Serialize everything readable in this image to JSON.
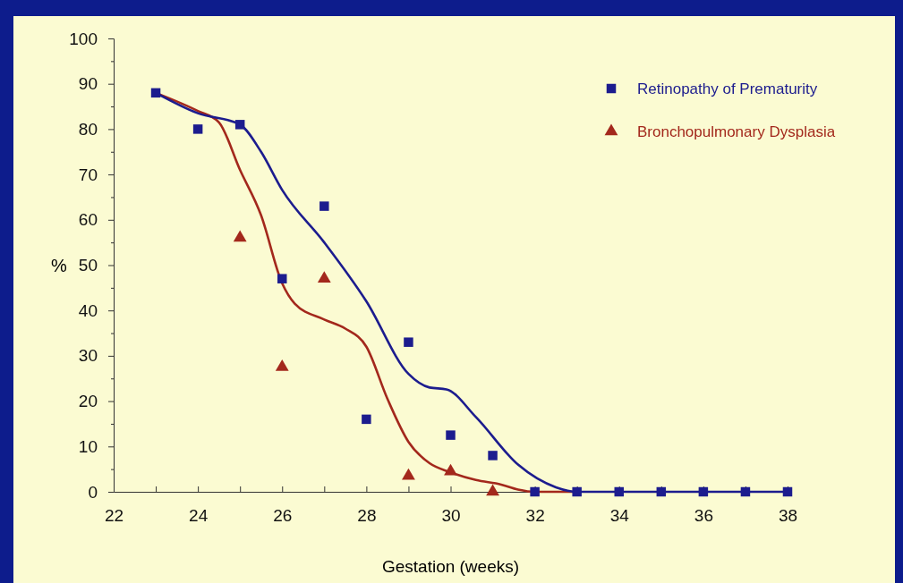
{
  "chart_data": {
    "type": "scatter",
    "xlabel": "Gestation (weeks)",
    "ylabel": "%",
    "xlim": [
      22,
      38
    ],
    "ylim": [
      0,
      100
    ],
    "xticks": [
      22,
      {
        "value": 23,
        "label": null
      },
      24,
      {
        "value": 25,
        "label": null
      },
      26,
      {
        "value": 27,
        "label": null
      },
      28,
      {
        "value": 29,
        "label": null
      },
      30,
      {
        "value": 31,
        "label": null
      },
      32,
      {
        "value": 33,
        "label": null
      },
      34,
      {
        "value": 35,
        "label": null
      },
      36,
      {
        "value": 37,
        "label": null
      },
      38
    ],
    "yticks": [
      0,
      {
        "value": 5,
        "label": null
      },
      10,
      {
        "value": 15,
        "label": null
      },
      20,
      {
        "value": 25,
        "label": null
      },
      30,
      {
        "value": 35,
        "label": null
      },
      40,
      {
        "value": 45,
        "label": null
      },
      50,
      {
        "value": 55,
        "label": null
      },
      60,
      {
        "value": 65,
        "label": null
      },
      70,
      {
        "value": 75,
        "label": null
      },
      80,
      {
        "value": 85,
        "label": null
      },
      90,
      {
        "value": 95,
        "label": null
      },
      100
    ],
    "legend": "top right",
    "series": [
      {
        "name": "Retinopathy of Prematurity",
        "marker": "square",
        "color": "#1c1c8e",
        "x": [
          23,
          24,
          25,
          26,
          27,
          28,
          29,
          30,
          31,
          32,
          33,
          34,
          35,
          36,
          37,
          38
        ],
        "values": [
          88,
          80,
          81,
          47,
          63,
          16,
          33,
          12.5,
          8,
          0,
          0,
          0,
          0,
          0,
          0,
          0
        ]
      },
      {
        "name": "Bronchopulmonary Dysplasia",
        "marker": "triangle",
        "color": "#a3281c",
        "x": [
          25,
          26,
          27,
          29,
          30,
          31
        ],
        "values": [
          56,
          27.5,
          47,
          3.5,
          4.5,
          0
        ]
      },
      {
        "type": "line",
        "marker": "none",
        "color": "#a3281c",
        "x": [
          23,
          24,
          24.5,
          25,
          25.5,
          26,
          26.3,
          27,
          27.5,
          28,
          28.5,
          29,
          29.5,
          30,
          30.6,
          31.2,
          31.6,
          32,
          33
        ],
        "values": [
          88,
          84,
          81.5,
          71,
          61,
          46,
          41.5,
          38,
          36,
          32,
          20.5,
          11,
          6.3,
          4.3,
          2.6,
          1.6,
          0.5,
          0,
          0
        ]
      },
      {
        "type": "line",
        "marker": "none",
        "color": "#1c1c8e",
        "x": [
          23,
          24,
          25,
          25.5,
          26,
          27,
          28,
          29,
          29.5,
          29.9,
          30.6,
          31.6,
          32.5,
          33,
          34,
          35,
          36,
          37,
          38
        ],
        "values": [
          88,
          83.5,
          81,
          75,
          66.6,
          55,
          42,
          26,
          23,
          22.6,
          16.5,
          6,
          1,
          0,
          0,
          0,
          0,
          0,
          0
        ]
      }
    ]
  }
}
